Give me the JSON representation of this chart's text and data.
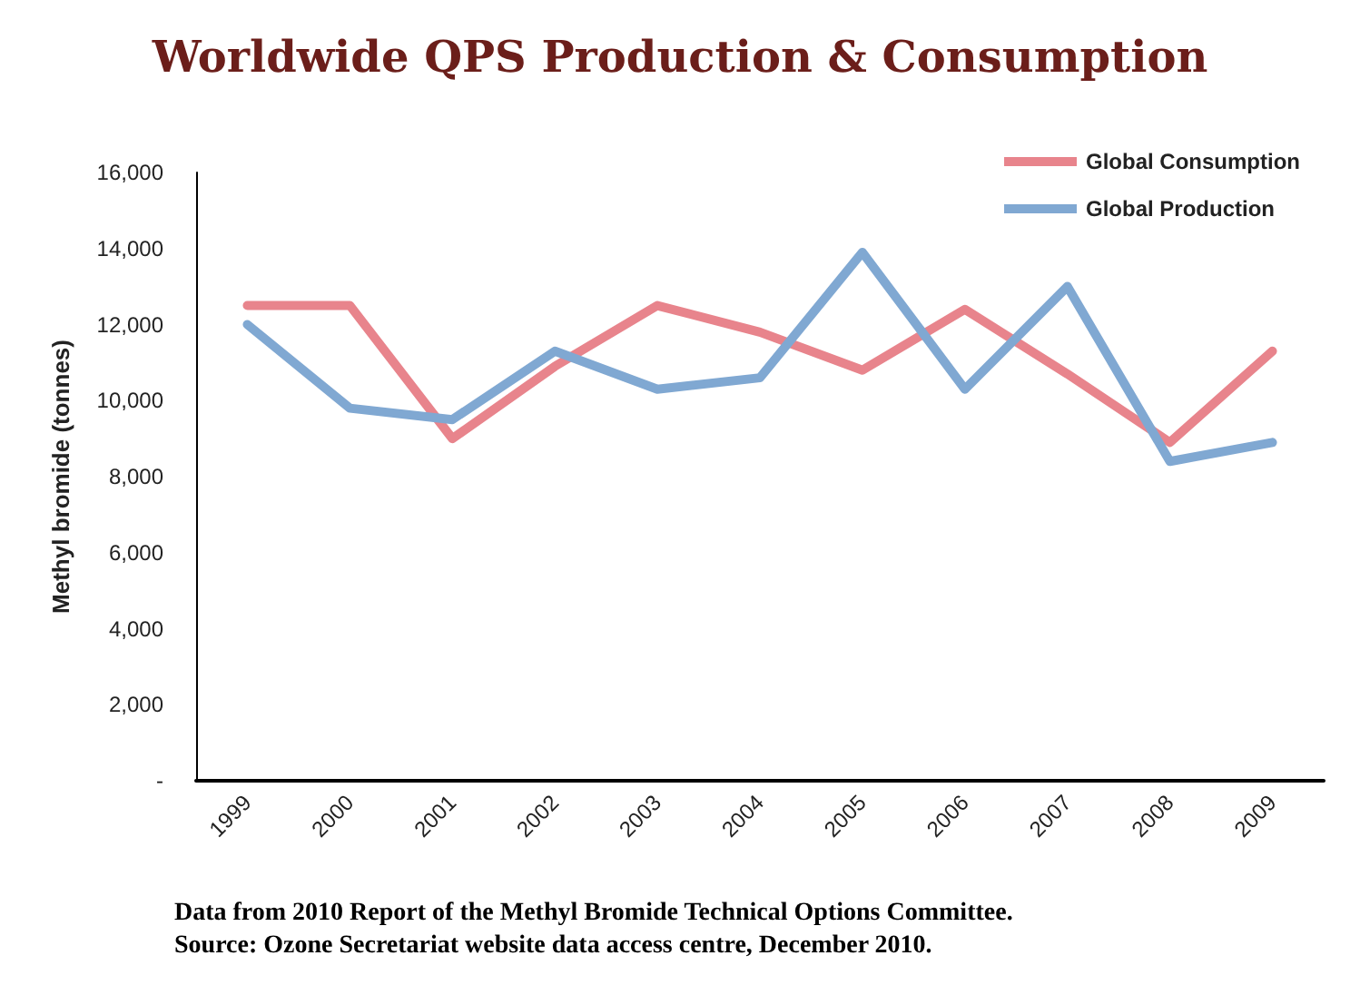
{
  "chart_data": {
    "type": "line",
    "title": "Worldwide QPS Production & Consumption",
    "ylabel": "Methyl bromide (tonnes)",
    "categories": [
      "1999",
      "2000",
      "2001",
      "2002",
      "2003",
      "2004",
      "2005",
      "2006",
      "2007",
      "2008",
      "2009"
    ],
    "series": [
      {
        "name": "Global Consumption",
        "color": "#e8848c",
        "values": [
          12500,
          12500,
          9000,
          10900,
          12500,
          11800,
          10800,
          12400,
          10700,
          8900,
          11300
        ]
      },
      {
        "name": "Global Production",
        "color": "#80a8d2",
        "values": [
          12000,
          9800,
          9500,
          11300,
          10300,
          10600,
          13900,
          10300,
          13000,
          8400,
          8900
        ]
      }
    ],
    "ylim": [
      0,
      16000
    ],
    "yticks": [
      {
        "value": 0,
        "label": "-"
      },
      {
        "value": 2000,
        "label": "2,000"
      },
      {
        "value": 4000,
        "label": "4,000"
      },
      {
        "value": 6000,
        "label": "6,000"
      },
      {
        "value": 8000,
        "label": "8,000"
      },
      {
        "value": 10000,
        "label": "10,000"
      },
      {
        "value": 12000,
        "label": "12,000"
      },
      {
        "value": 14000,
        "label": "14,000"
      },
      {
        "value": 16000,
        "label": "16,000"
      }
    ],
    "grid": false,
    "legend": "top right",
    "marker": "none",
    "line_style": "solid",
    "annotations": [
      "Data from 2010 Report of the Methyl Bromide Technical Options Committee.",
      "Source: Ozone Secretariat website data access centre, December 2010."
    ]
  }
}
